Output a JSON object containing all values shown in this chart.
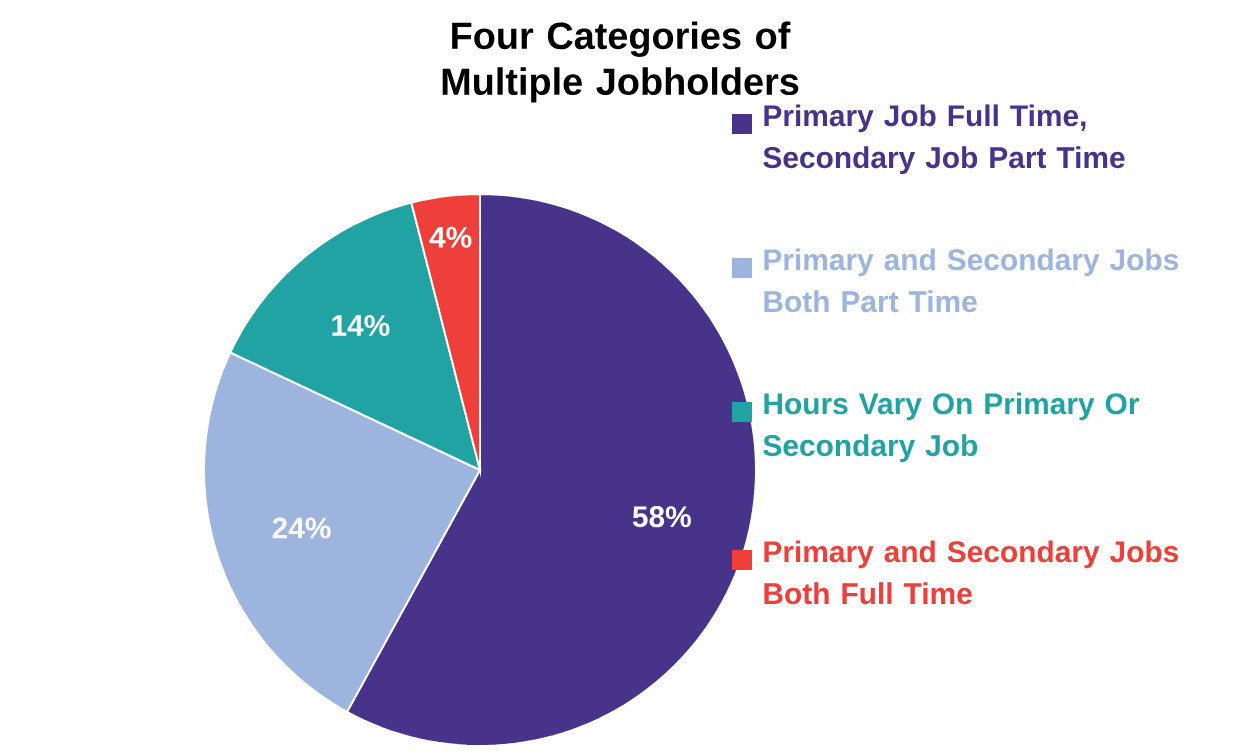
{
  "chart_data": {
    "type": "pie",
    "title": "Four Categories of Multiple Jobholders",
    "categories": [
      "Primary Job Full Time, Secondary Job Part Time",
      "Primary and Secondary Jobs Both Part Time",
      "Hours Vary On Primary Or Secondary Job",
      "Primary and Secondary Jobs Both Full Time"
    ],
    "values": [
      58,
      24,
      14,
      4
    ],
    "value_labels": [
      "58%",
      "24%",
      "14%",
      "4%"
    ],
    "colors": [
      "#47338a",
      "#9db4de",
      "#21a3a3",
      "#ee3f3a"
    ],
    "legend": "right"
  }
}
